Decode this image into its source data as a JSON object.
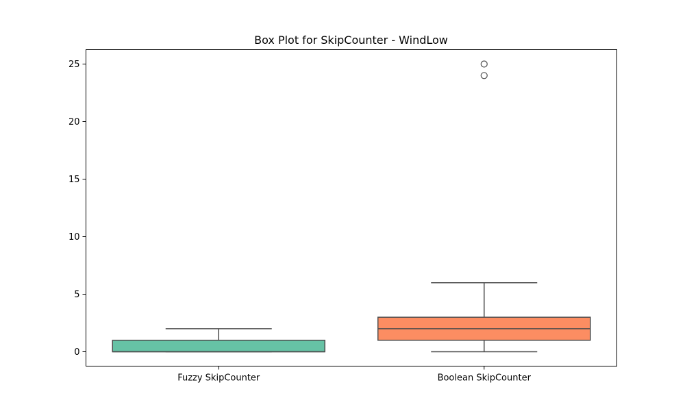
{
  "chart_data": {
    "type": "box",
    "title": "Box Plot for SkipCounter - WindLow",
    "xlabel": "",
    "ylabel": "",
    "ylim": [
      -1.25,
      26.25
    ],
    "yticks": [
      0,
      5,
      10,
      15,
      20,
      25
    ],
    "grid": false,
    "categories": [
      "Fuzzy SkipCounter",
      "Boolean SkipCounter"
    ],
    "boxes": [
      {
        "name": "Fuzzy SkipCounter",
        "color": "#66c2a5",
        "whisker_low": 0,
        "q1": 0,
        "median": 0,
        "q3": 1,
        "whisker_high": 2,
        "outliers": []
      },
      {
        "name": "Boolean SkipCounter",
        "color": "#fc8d62",
        "whisker_low": 0,
        "q1": 1,
        "median": 2,
        "q3": 3,
        "whisker_high": 6,
        "outliers": [
          24,
          25
        ]
      }
    ]
  }
}
